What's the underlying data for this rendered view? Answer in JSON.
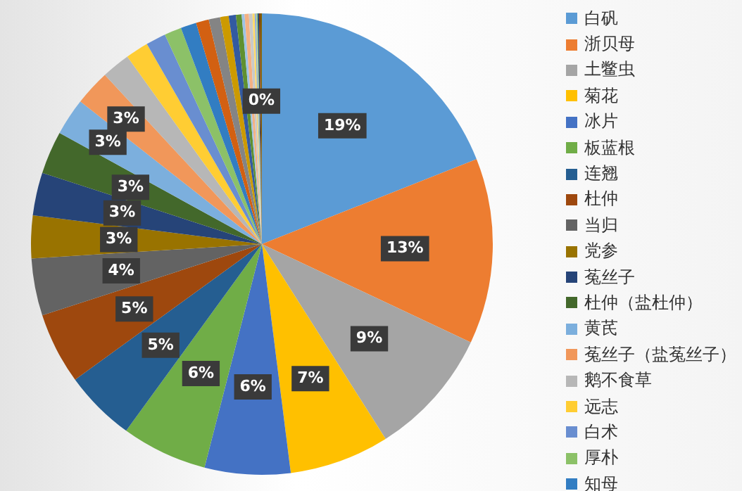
{
  "chart_data": {
    "type": "pie",
    "legend": "right",
    "categories": [
      "白矾",
      "浙贝母",
      "土鳖虫",
      "菊花",
      "冰片",
      "板蓝根",
      "连翘",
      "杜仲",
      "当归",
      "党参",
      "菟丝子",
      "杜仲（盐杜仲）",
      "黄芪",
      "菟丝子（盐菟丝子）",
      "鹅不食草",
      "远志",
      "白术",
      "厚朴",
      "知母",
      null,
      null,
      null,
      null,
      null,
      null,
      null,
      null,
      null,
      null,
      null,
      null,
      null,
      null
    ],
    "values": [
      19,
      13,
      9,
      7,
      6,
      6,
      5,
      5,
      4,
      3,
      3,
      3,
      2.6,
      2.5,
      2,
      1.6,
      1.4,
      1.2,
      1.1,
      0.9,
      0.8,
      0.6,
      0.5,
      0.4,
      0.2,
      0.3,
      0.25,
      0.15,
      0.1,
      0.1,
      0.1,
      0.1,
      0.1
    ],
    "colors": [
      "#5b9bd5",
      "#ed7d31",
      "#a5a5a5",
      "#ffc000",
      "#4472c4",
      "#70ad47",
      "#255e91",
      "#9e480e",
      "#636363",
      "#997300",
      "#264478",
      "#43682b",
      "#7cafdd",
      "#f1975a",
      "#b7b7b7",
      "#ffcd33",
      "#698ed0",
      "#8cc168",
      "#327dc2",
      "#d26012",
      "#848484",
      "#cc9a00",
      "#335aa1",
      "#5f9030",
      "#9dc3e6",
      "#f4b183",
      "#c9c9c9",
      "#ffd966",
      "#8faadc",
      "#a9d18e",
      "#1f4e79",
      "#843c0c",
      "#7f6000"
    ],
    "value_labels": [
      "19%",
      "13%",
      "9%",
      "7%",
      "6%",
      "6%",
      "5%",
      "5%",
      "4%",
      "3%",
      "3%",
      "3%",
      "3%",
      "3%",
      null,
      null,
      null,
      null,
      null,
      null,
      null,
      null,
      null,
      null,
      null,
      null,
      null,
      null,
      null,
      null,
      null,
      null,
      "0%"
    ]
  }
}
